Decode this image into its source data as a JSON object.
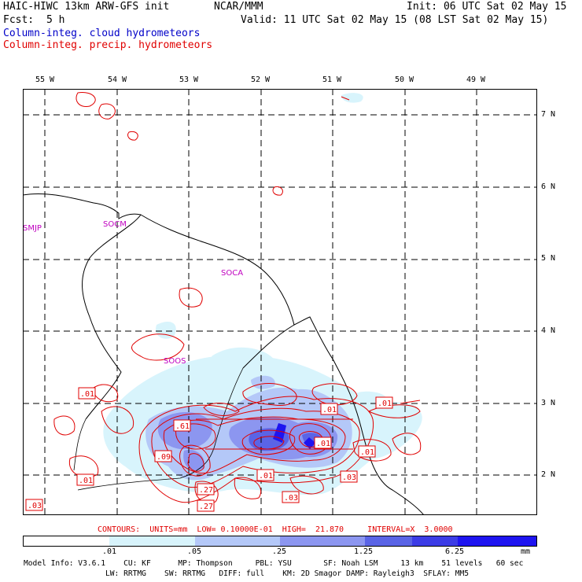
{
  "header": {
    "model_title": "HAIC-HIWC 13km ARW-GFS init",
    "org": "NCAR/MMM",
    "init": "Init: 06 UTC Sat 02 May 15",
    "fcst_label": "Fcst:",
    "fcst_value": "5 h",
    "valid": "Valid: 11 UTC Sat 02 May 15 (08 LST Sat 02 May 15)",
    "legend_cloud": "Column-integ. cloud hydrometeors",
    "legend_precip": "Column-integ. precip. hydrometeors"
  },
  "map": {
    "lon_labels": [
      "55 W",
      "54 W",
      "53 W",
      "52 W",
      "51 W",
      "50 W",
      "49 W"
    ],
    "lat_labels": [
      "7 N",
      "6 N",
      "5 N",
      "4 N",
      "3 N",
      "2 N"
    ],
    "stations": [
      "SMJP",
      "SOCM",
      "SOCA",
      "SOOS"
    ],
    "contour_labels": [
      ".01",
      ".01",
      ".01",
      ".01",
      ".61",
      ".09",
      ".01",
      ".01",
      ".27",
      ".27",
      ".03",
      ".03",
      ".01",
      ".03"
    ]
  },
  "contours_line": "CONTOURS:  UNITS=mm  LOW= 0.10000E-01  HIGH=  21.870     INTERVAL=X  3.0000",
  "colorbar": {
    "ticks": [
      ".01",
      ".05",
      ".25",
      "1.25",
      "6.25"
    ],
    "unit": "mm",
    "colors": [
      "#ffffff",
      "#d8f4fc",
      "#b4c8f8",
      "#8c96f0",
      "#5a64e6",
      "#3c3ce6",
      "#1e14f0"
    ]
  },
  "model_info": {
    "line1": "Model Info: V3.6.1    CU: KF      MP: Thompson     PBL: YSU       SF: Noah LSM     13 km    51 levels   60 sec",
    "line2": "                  LW: RRTMG    SW: RRTMG   DIFF: full    KM: 2D Smagor DAMP: Rayleigh3  SFLAY: MM5"
  }
}
